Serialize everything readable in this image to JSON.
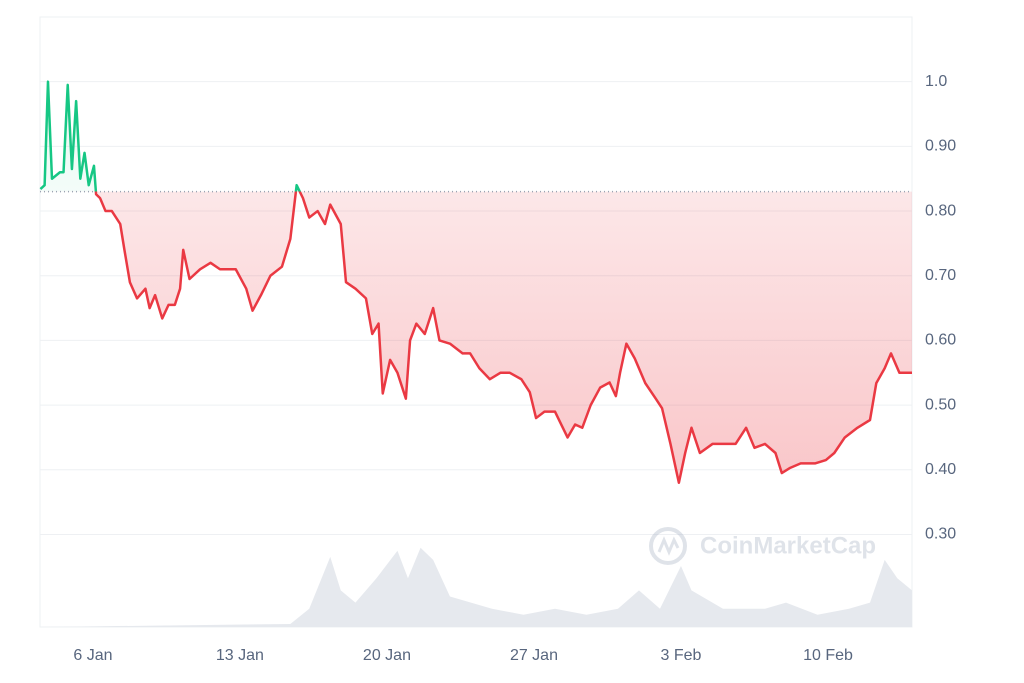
{
  "chart_data": {
    "type": "line",
    "watermark": "CoinMarketCap",
    "x": [
      3.5,
      3.7,
      3.86,
      4.05,
      4.43,
      4.6,
      4.8,
      5.0,
      5.2,
      5.4,
      5.6,
      5.8,
      6.05,
      6.15,
      6.34,
      6.6,
      6.9,
      7.3,
      7.5,
      7.76,
      8.1,
      8.5,
      8.7,
      8.96,
      9.3,
      9.6,
      9.9,
      10.15,
      10.3,
      10.6,
      11.1,
      11.6,
      12.05,
      12.8,
      13.3,
      13.6,
      14.0,
      14.45,
      15.0,
      15.4,
      15.7,
      16.0,
      16.3,
      16.7,
      17.05,
      17.3,
      17.8,
      18.05,
      18.5,
      19.0,
      19.3,
      19.6,
      19.8,
      20.15,
      20.5,
      20.9,
      21.1,
      21.4,
      21.8,
      22.2,
      22.5,
      23.0,
      23.6,
      23.96,
      24.4,
      24.9,
      25.4,
      25.85,
      26.4,
      26.8,
      27.1,
      27.5,
      28.0,
      28.3,
      28.6,
      28.96,
      29.3,
      29.7,
      30.15,
      30.6,
      30.9,
      31.1,
      31.4,
      31.8,
      32.3,
      32.8,
      33.1,
      33.5,
      33.9,
      34.2,
      34.5,
      34.9,
      35.5,
      36.1,
      36.6,
      37.1,
      37.5,
      38.0,
      38.5,
      38.8,
      39.2,
      39.7,
      40.4,
      40.9,
      41.3,
      41.8,
      42.4,
      43.0,
      43.3,
      43.7,
      44.0,
      44.4,
      45.0
    ],
    "values": [
      0.834,
      0.84,
      1.0,
      0.85,
      0.86,
      0.86,
      0.995,
      0.865,
      0.97,
      0.85,
      0.89,
      0.84,
      0.87,
      0.826,
      0.82,
      0.8,
      0.8,
      0.78,
      0.74,
      0.69,
      0.665,
      0.68,
      0.65,
      0.67,
      0.634,
      0.655,
      0.655,
      0.68,
      0.74,
      0.695,
      0.71,
      0.72,
      0.71,
      0.71,
      0.68,
      0.646,
      0.67,
      0.7,
      0.714,
      0.757,
      0.84,
      0.82,
      0.79,
      0.8,
      0.78,
      0.81,
      0.78,
      0.69,
      0.68,
      0.665,
      0.61,
      0.626,
      0.518,
      0.57,
      0.55,
      0.51,
      0.6,
      0.626,
      0.61,
      0.65,
      0.6,
      0.595,
      0.58,
      0.58,
      0.557,
      0.54,
      0.55,
      0.55,
      0.54,
      0.52,
      0.48,
      0.49,
      0.49,
      0.47,
      0.45,
      0.47,
      0.465,
      0.5,
      0.527,
      0.535,
      0.514,
      0.55,
      0.595,
      0.572,
      0.534,
      0.51,
      0.495,
      0.44,
      0.38,
      0.426,
      0.465,
      0.426,
      0.44,
      0.44,
      0.44,
      0.465,
      0.434,
      0.44,
      0.426,
      0.395,
      0.403,
      0.41,
      0.41,
      0.415,
      0.426,
      0.45,
      0.465,
      0.477,
      0.534,
      0.557,
      0.58,
      0.55,
      0.55
    ],
    "baseline": 0.83,
    "color_up": "#16c784",
    "color_down": "#ea3943",
    "volume": {
      "x": [
        3.5,
        15.4,
        16.3,
        17.3,
        17.8,
        18.5,
        19.5,
        20.5,
        21.0,
        21.6,
        22.2,
        23.0,
        24.0,
        25.0,
        26.5,
        28.0,
        29.5,
        31.0,
        32.0,
        33.0,
        34.0,
        34.5,
        36.0,
        38.0,
        39.0,
        40.5,
        42.0,
        43.0,
        43.7,
        44.3,
        45.0
      ],
      "values": [
        0,
        0.5,
        3,
        11.5,
        6,
        4,
        8,
        12.5,
        8,
        13,
        11,
        5,
        4,
        3,
        2,
        3,
        2,
        3,
        6,
        3,
        10,
        6,
        3,
        3,
        4,
        2,
        3,
        4,
        11,
        8,
        6
      ],
      "axis": "y2",
      "color": "#e6e9ee"
    },
    "xlim": [
      3.48,
      45.0
    ],
    "xticks": [
      {
        "value": 6,
        "label": "6 Jan"
      },
      {
        "value": 13,
        "label": "13 Jan"
      },
      {
        "value": 20,
        "label": "20 Jan"
      },
      {
        "value": 27,
        "label": "27 Jan"
      },
      {
        "value": 34,
        "label": "3 Feb"
      },
      {
        "value": 41,
        "label": "10 Feb"
      }
    ],
    "ylim": [
      0.157,
      1.1
    ],
    "yticks": [
      {
        "value": 1.0,
        "label": "1.0"
      },
      {
        "value": 0.9,
        "label": "0.90"
      },
      {
        "value": 0.8,
        "label": "0.80"
      },
      {
        "value": 0.7,
        "label": "0.70"
      },
      {
        "value": 0.6,
        "label": "0.60"
      },
      {
        "value": 0.5,
        "label": "0.50"
      },
      {
        "value": 0.4,
        "label": "0.40"
      },
      {
        "value": 0.3,
        "label": "0.30"
      }
    ],
    "y2lim": [
      0,
      100
    ],
    "grid": true
  }
}
